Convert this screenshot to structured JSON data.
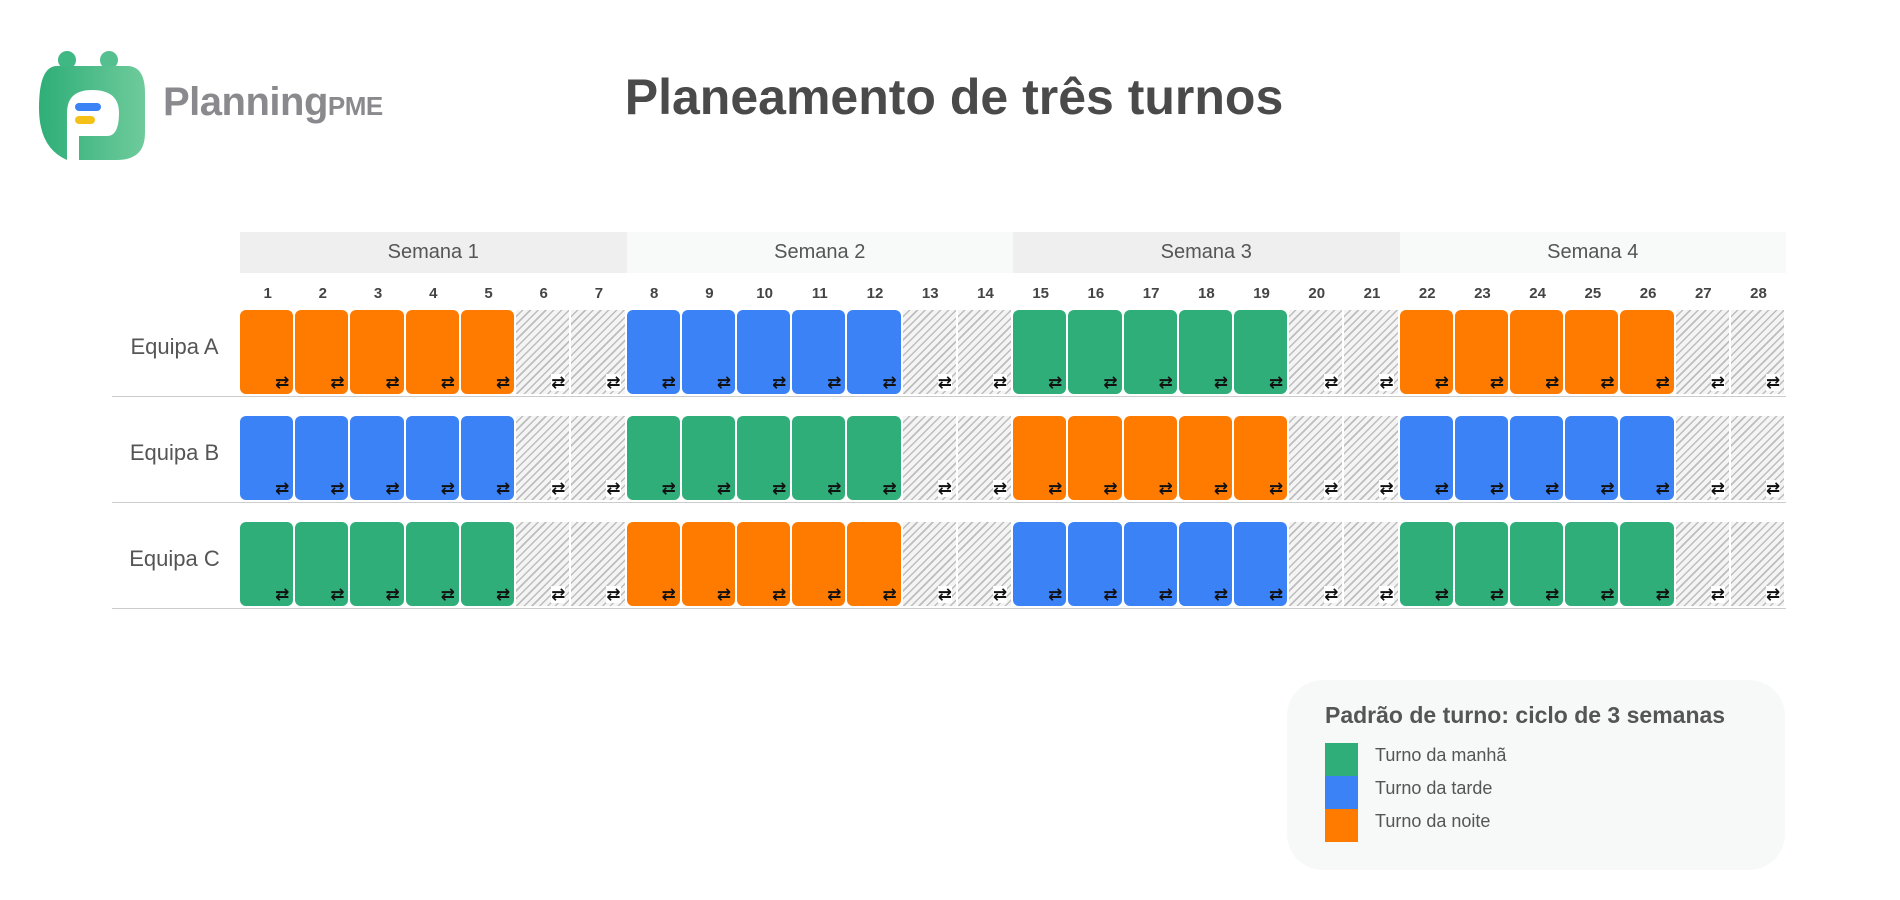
{
  "brand": {
    "name": "Planning",
    "suffix": "PME"
  },
  "title": "Planeamento de três turnos",
  "weeks": [
    "Semana 1",
    "Semana 2",
    "Semana 3",
    "Semana 4"
  ],
  "days": [
    "1",
    "2",
    "3",
    "4",
    "5",
    "6",
    "7",
    "8",
    "9",
    "10",
    "11",
    "12",
    "13",
    "14",
    "15",
    "16",
    "17",
    "18",
    "19",
    "20",
    "21",
    "22",
    "23",
    "24",
    "25",
    "26",
    "27",
    "28"
  ],
  "colors": {
    "M": "#2fae7a",
    "T": "#3b82f6",
    "N": "#ff7b00"
  },
  "teams": [
    {
      "label": "Equipa A",
      "weeks": [
        "N",
        "T",
        "M",
        "N"
      ]
    },
    {
      "label": "Equipa B",
      "weeks": [
        "T",
        "M",
        "N",
        "T"
      ]
    },
    {
      "label": "Equipa C",
      "weeks": [
        "M",
        "N",
        "T",
        "M"
      ]
    }
  ],
  "rotate_icon": "⇄",
  "legend": {
    "title": "Padrão de turno: ciclo de 3 semanas",
    "items": [
      {
        "code": "M",
        "label": "Turno da manhã"
      },
      {
        "code": "T",
        "label": "Turno da tarde"
      },
      {
        "code": "N",
        "label": "Turno da noite"
      }
    ]
  }
}
